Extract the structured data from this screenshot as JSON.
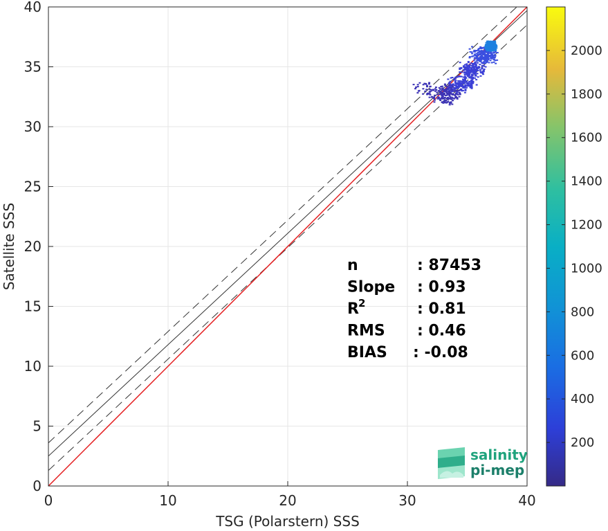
{
  "chart_data": {
    "type": "scatter",
    "xlabel": "TSG (Polarstern) SSS",
    "ylabel": "Satellite SSS",
    "xlim": [
      0,
      40
    ],
    "ylim": [
      0,
      40
    ],
    "x_ticks": [
      "0",
      "10",
      "20",
      "30",
      "40"
    ],
    "y_ticks": [
      "0",
      "5",
      "10",
      "15",
      "20",
      "25",
      "30",
      "35",
      "40"
    ],
    "grid": true,
    "one_to_one_line": {
      "color": "#e41a1c",
      "intercept": 0,
      "slope": 1
    },
    "regression_line": {
      "color": "#333333",
      "intercept": 2.5,
      "slope": 0.93
    },
    "confidence_lines": [
      {
        "intercept": 3.6,
        "slope": 0.93
      },
      {
        "intercept": 1.3,
        "slope": 0.93
      }
    ],
    "density_cloud": {
      "x_range": [
        29.5,
        37.5
      ],
      "y_range": [
        31.0,
        37.2
      ],
      "colormap": "parula",
      "clusters": [
        {
          "x": 33.5,
          "y": 33.0,
          "count": 200
        },
        {
          "x": 34.5,
          "y": 33.6,
          "count": 300
        },
        {
          "x": 35.3,
          "y": 34.8,
          "count": 350
        },
        {
          "x": 36.3,
          "y": 36.0,
          "count": 450
        },
        {
          "x": 36.9,
          "y": 36.8,
          "count": 900
        },
        {
          "x": 31.5,
          "y": 33.2,
          "count": 80
        },
        {
          "x": 33.0,
          "y": 32.5,
          "count": 150
        }
      ]
    },
    "colorbar": {
      "range": [
        0,
        2200
      ],
      "ticks": [
        "200",
        "400",
        "600",
        "800",
        "1000",
        "1200",
        "1400",
        "1600",
        "1800",
        "2000"
      ],
      "tick_values": [
        200,
        400,
        600,
        800,
        1000,
        1200,
        1400,
        1600,
        1800,
        2000
      ]
    },
    "stats": [
      {
        "label": "n",
        "value": ": 87453"
      },
      {
        "label": "Slope",
        "value": ": 0.93"
      },
      {
        "label": "R",
        "sup": "2",
        "value": ": 0.81"
      },
      {
        "label": "RMS",
        "value": ": 0.46"
      },
      {
        "label": "BIAS",
        "value": ": -0.08"
      }
    ]
  },
  "logo": {
    "line1": "salinity",
    "line2": "pi-mep"
  }
}
